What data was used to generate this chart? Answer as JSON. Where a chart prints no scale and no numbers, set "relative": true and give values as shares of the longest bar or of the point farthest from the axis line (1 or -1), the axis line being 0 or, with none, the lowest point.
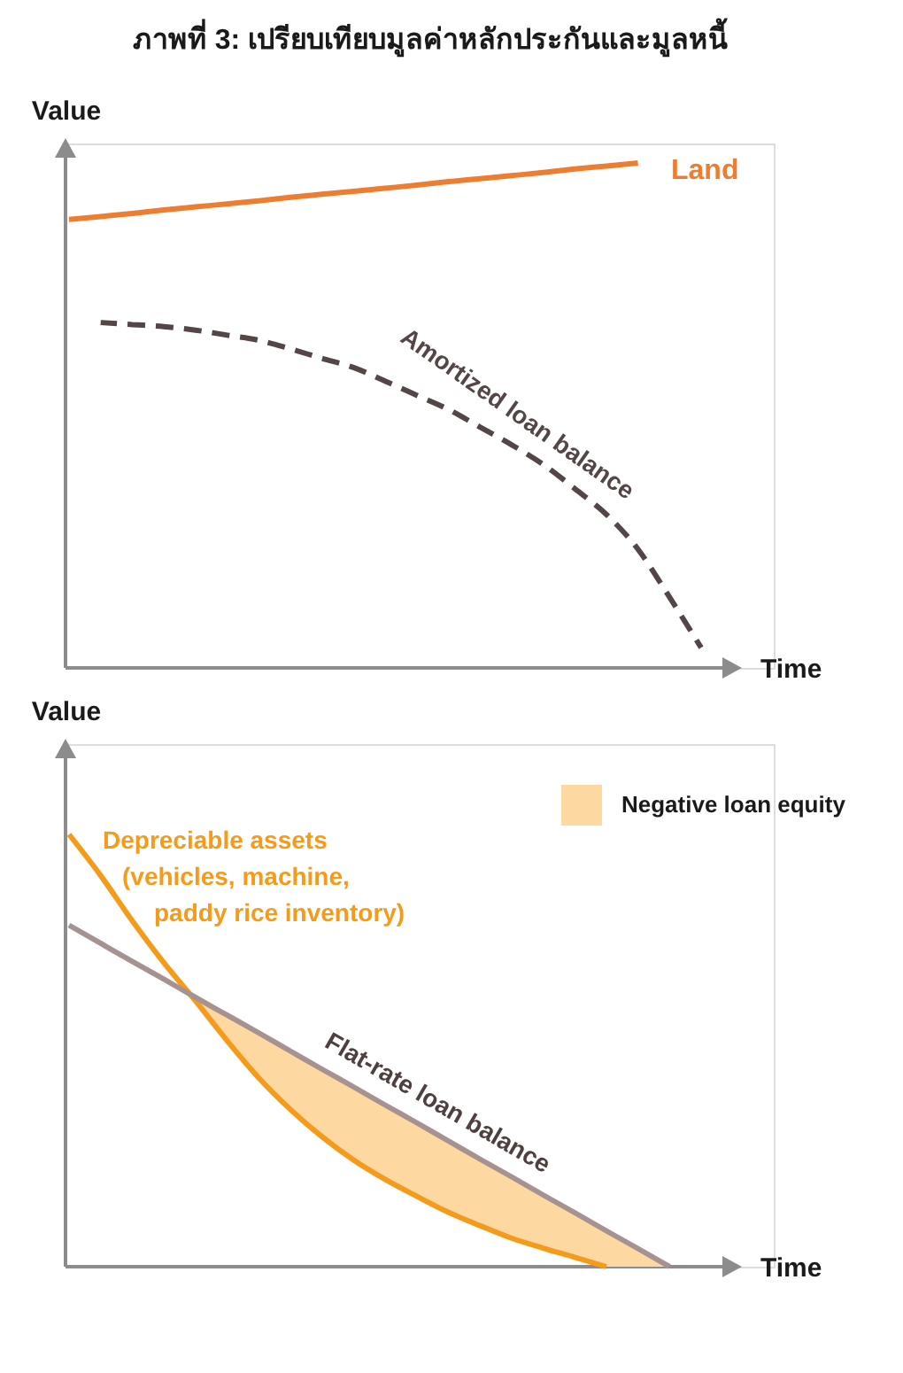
{
  "chart_data": [
    {
      "type": "line",
      "title": "ภาพที่ 3: เปรียบเทียบมูลค่าหลักประกันและมูลหนี้",
      "xlabel": "Time",
      "ylabel": "Value",
      "relative": true,
      "categories": [
        null,
        null,
        null,
        null,
        null,
        null,
        null,
        null,
        null,
        null,
        null,
        null,
        null,
        null,
        null,
        null,
        null,
        null,
        null,
        null,
        null
      ],
      "series": [
        {
          "name": "Land",
          "color": "#ed7d31",
          "values": [
            0.888,
            0.894,
            0.9,
            0.907,
            0.913,
            0.919,
            0.925,
            0.932,
            0.938,
            0.944,
            0.95,
            0.956,
            0.963,
            0.969,
            0.975,
            0.981,
            0.988,
            0.994,
            1.0,
            null,
            null
          ]
        },
        {
          "name": "Amortized loan balance",
          "color": "#544646",
          "line_style": "dashed",
          "values": [
            null,
            0.684,
            0.68,
            0.676,
            0.669,
            0.659,
            0.649,
            0.632,
            0.613,
            0.595,
            0.568,
            0.54,
            0.512,
            0.477,
            0.442,
            0.403,
            0.355,
            0.304,
            0.235,
            0.14,
            0.04
          ]
        }
      ],
      "legend": false,
      "grid": false,
      "marker": "none"
    },
    {
      "type": "line",
      "xlabel": "Time",
      "ylabel": "Value",
      "relative": true,
      "categories": [
        null,
        null,
        null,
        null,
        null,
        null,
        null,
        null,
        null,
        null,
        null,
        null,
        null,
        null,
        null,
        null,
        null,
        null,
        null,
        null,
        null
      ],
      "series": [
        {
          "name": "Depreciable assets (vehicles, machine, paddy rice inventory)",
          "color": "#f59b1b",
          "values": [
            1.0,
            0.905,
            0.8,
            0.703,
            0.615,
            0.523,
            0.437,
            0.364,
            0.301,
            0.247,
            0.202,
            0.163,
            0.126,
            0.095,
            0.066,
            0.043,
            0.022,
            0,
            null,
            null,
            null
          ]
        },
        {
          "name": "Flat-rate loan balance",
          "color": "#a69391",
          "values": [
            0.79,
            0.748,
            0.706,
            0.665,
            0.623,
            0.582,
            0.541,
            0.499,
            0.457,
            0.416,
            0.374,
            0.333,
            0.291,
            0.249,
            0.208,
            0.166,
            0.125,
            0.083,
            0.042,
            0,
            null
          ]
        },
        {
          "name": "Negative loan equity",
          "type": "area",
          "color": "#fdd8a0",
          "values": [
            null,
            null,
            null,
            null,
            null,
            null,
            null,
            null,
            null,
            null,
            null,
            null,
            null,
            null,
            null,
            null,
            null,
            null,
            null,
            null,
            null
          ],
          "upper": [
            null,
            null,
            null,
            null,
            0.623,
            0.582,
            0.541,
            0.499,
            0.457,
            0.416,
            0.374,
            0.333,
            0.291,
            0.249,
            0.208,
            0.166,
            0.125,
            0.083,
            0.042,
            0,
            null
          ],
          "lower": [
            null,
            null,
            null,
            null,
            0.615,
            0.523,
            0.437,
            0.364,
            0.301,
            0.247,
            0.202,
            0.163,
            0.126,
            0.095,
            0.066,
            0.043,
            0.022,
            0,
            0,
            0,
            null
          ]
        }
      ],
      "legend": "top right",
      "grid": false,
      "marker": "none"
    }
  ]
}
